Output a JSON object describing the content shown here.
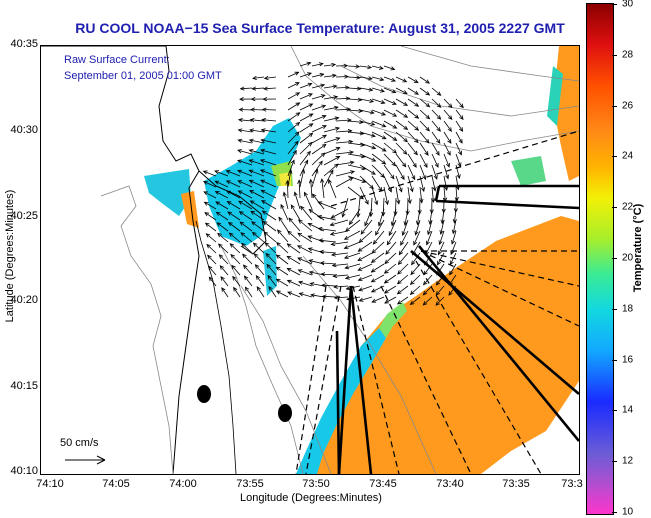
{
  "title": "RU COOL  NOAA−15  Sea Surface Temperature:  August 31, 2005 2227 GMT",
  "info": {
    "line1": "Raw Surface Current:",
    "line2": "September 01, 2005 01:00 GMT"
  },
  "axes": {
    "x_label": "Longitude (Degrees:Minutes)",
    "y_label": "Latitude (Degrees:Minutes)",
    "x_ticks": [
      "74:10",
      "74:05",
      "74:00",
      "73:55",
      "73:50",
      "73:45",
      "73:40",
      "73:35",
      "73:3"
    ],
    "y_ticks": [
      "40:35",
      "40:30",
      "40:25",
      "40:20",
      "40:15",
      "40:10"
    ]
  },
  "scale": {
    "label": "50 cm/s"
  },
  "colorbar": {
    "label": "Temperature (°C)",
    "ticks": [
      "30",
      "28",
      "26",
      "24",
      "22",
      "20",
      "18",
      "16",
      "14",
      "12",
      "10"
    ],
    "min": 10,
    "max": 30
  },
  "colors": {
    "title": "#2020b0",
    "sst_warm": "#ff9a1e",
    "sst_cool": "#18c8e8",
    "coast": "#000000",
    "bathymetry": "#888888"
  },
  "icons": {
    "scale_arrow": "arrow-right-icon",
    "station": "station-dot-icon"
  }
}
